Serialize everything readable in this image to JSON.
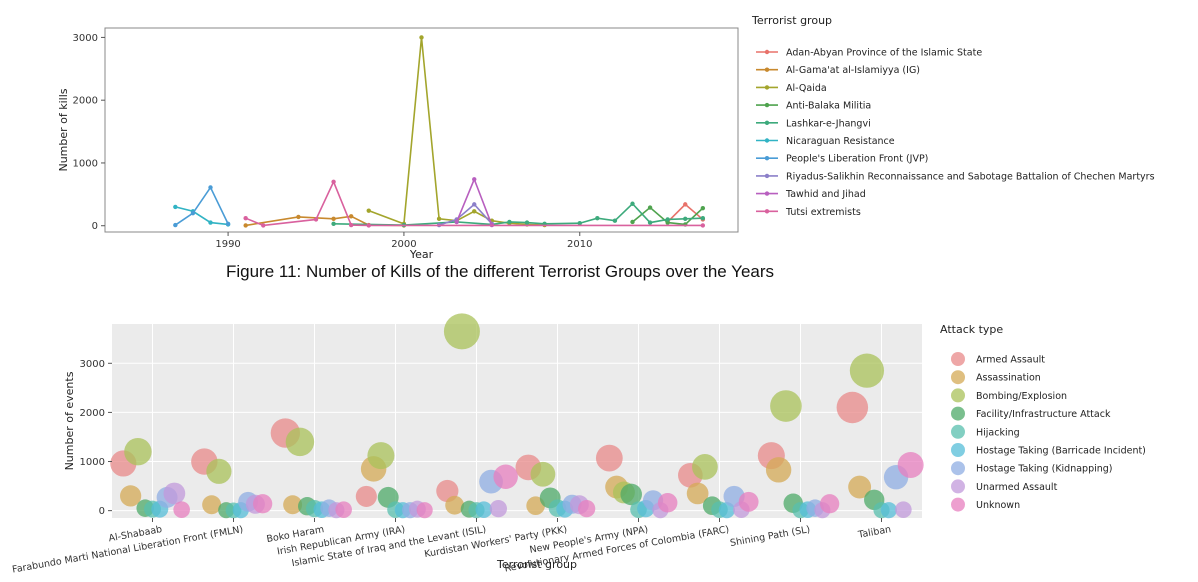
{
  "chart_data": [
    {
      "type": "line",
      "xlabel": "Year",
      "ylabel": "Number of kills",
      "xlim": [
        1983,
        2019
      ],
      "ylim": [
        -100,
        3150
      ],
      "x_ticks": [
        1990,
        2000,
        2010
      ],
      "y_ticks": [
        0,
        1000,
        2000,
        3000
      ],
      "legend_title": "Terrorist group",
      "legend_position": "right",
      "grid": false,
      "series": [
        {
          "name": "Adan-Abyan Province of the Islamic State",
          "color": "#E8726A",
          "points": [
            [
              2015,
              60
            ],
            [
              2016,
              340
            ],
            [
              2017,
              100
            ]
          ]
        },
        {
          "name": "Al-Gama'at al-Islamiyya (IG)",
          "color": "#C8892E",
          "points": [
            [
              1991,
              5
            ],
            [
              1994,
              140
            ],
            [
              1996,
              110
            ],
            [
              1997,
              150
            ],
            [
              1998,
              10
            ],
            [
              2000,
              5
            ]
          ]
        },
        {
          "name": "Al-Qaida",
          "color": "#A3A52C",
          "points": [
            [
              1998,
              240
            ],
            [
              2000,
              30
            ],
            [
              2001,
              3000
            ],
            [
              2002,
              110
            ],
            [
              2003,
              80
            ],
            [
              2004,
              230
            ],
            [
              2005,
              80
            ],
            [
              2006,
              40
            ],
            [
              2007,
              20
            ],
            [
              2008,
              10
            ]
          ]
        },
        {
          "name": "Anti-Balaka Militia",
          "color": "#4FA34E",
          "points": [
            [
              2013,
              60
            ],
            [
              2014,
              290
            ],
            [
              2015,
              50
            ],
            [
              2016,
              20
            ],
            [
              2017,
              280
            ]
          ]
        },
        {
          "name": "Lashkar-e-Jhangvi",
          "color": "#3DAA7C",
          "points": [
            [
              1996,
              30
            ],
            [
              2000,
              10
            ],
            [
              2003,
              60
            ],
            [
              2005,
              20
            ],
            [
              2006,
              60
            ],
            [
              2007,
              50
            ],
            [
              2008,
              30
            ],
            [
              2010,
              40
            ],
            [
              2011,
              120
            ],
            [
              2012,
              80
            ],
            [
              2013,
              350
            ],
            [
              2014,
              50
            ],
            [
              2015,
              100
            ],
            [
              2016,
              110
            ],
            [
              2017,
              120
            ]
          ]
        },
        {
          "name": "Nicaraguan Resistance",
          "color": "#31B3C4",
          "points": [
            [
              1987,
              300
            ],
            [
              1988,
              230
            ],
            [
              1989,
              50
            ],
            [
              1990,
              20
            ]
          ]
        },
        {
          "name": "People's Liberation Front (JVP)",
          "color": "#4A9CD6",
          "points": [
            [
              1987,
              10
            ],
            [
              1988,
              200
            ],
            [
              1989,
              610
            ],
            [
              1990,
              30
            ]
          ]
        },
        {
          "name": "Riyadus-Salikhin Reconnaissance and Sabotage Battalion of Chechen Martyrs",
          "color": "#8C80C9",
          "points": [
            [
              2002,
              10
            ],
            [
              2003,
              100
            ],
            [
              2004,
              340
            ],
            [
              2005,
              30
            ]
          ]
        },
        {
          "name": "Tawhid and Jihad",
          "color": "#B85FBF",
          "points": [
            [
              2003,
              60
            ],
            [
              2004,
              740
            ],
            [
              2005,
              10
            ]
          ]
        },
        {
          "name": "Tutsi extremists",
          "color": "#D9619E",
          "points": [
            [
              1991,
              120
            ],
            [
              1992,
              5
            ],
            [
              1995,
              100
            ],
            [
              1996,
              700
            ],
            [
              1997,
              10
            ],
            [
              1998,
              5
            ],
            [
              2017,
              5
            ]
          ]
        }
      ]
    },
    {
      "type": "scatter",
      "xlabel": "Terrorist group",
      "ylabel": "Number of events",
      "ylim": [
        -150,
        3800
      ],
      "y_ticks": [
        0,
        1000,
        2000,
        3000
      ],
      "legend_title": "Attack type",
      "legend_position": "right",
      "grid": true,
      "categories": [
        "Al-Shabaab",
        "Farabundo Marti National Liberation Front (FMLN)",
        "Boko Haram",
        "Irish Republican Army (IRA)",
        "Islamic State of Iraq and the Levant (ISIL)",
        "Kurdistan Workers' Party (PKK)",
        "New People's Army (NPA)",
        "Revolutionary Armed Forces of Colombia (FARC)",
        "Shining Path (SL)",
        "Taliban"
      ],
      "series": [
        {
          "name": "Armed Assault",
          "color": "#E88A8A",
          "values": [
            960,
            1000,
            1580,
            290,
            400,
            880,
            1070,
            720,
            1120,
            2100
          ]
        },
        {
          "name": "Assassination",
          "color": "#D4AA55",
          "values": [
            300,
            120,
            120,
            850,
            110,
            100,
            480,
            350,
            830,
            480
          ]
        },
        {
          "name": "Bombing/Explosion",
          "color": "#A9C15A",
          "values": [
            1200,
            800,
            1400,
            1120,
            3650,
            740,
            370,
            890,
            2130,
            2850
          ]
        },
        {
          "name": "Facility/Infrastructure Attack",
          "color": "#4EAA68",
          "values": [
            50,
            10,
            90,
            270,
            30,
            260,
            330,
            100,
            150,
            220
          ]
        },
        {
          "name": "Hijacking",
          "color": "#58BFAE",
          "values": [
            30,
            5,
            40,
            20,
            10,
            50,
            20,
            20,
            10,
            10
          ]
        },
        {
          "name": "Hostage Taking (Barricade Incident)",
          "color": "#55BDD8",
          "values": [
            30,
            10,
            20,
            10,
            20,
            30,
            40,
            10,
            20,
            10
          ]
        },
        {
          "name": "Hostage Taking (Kidnapping)",
          "color": "#8FADE3",
          "values": [
            270,
            180,
            50,
            10,
            590,
            130,
            210,
            290,
            50,
            680
          ]
        },
        {
          "name": "Unarmed Assault",
          "color": "#C29ADB",
          "values": [
            350,
            130,
            10,
            30,
            40,
            120,
            10,
            20,
            10,
            20
          ]
        },
        {
          "name": "Unknown",
          "color": "#E77FBF",
          "values": [
            20,
            140,
            20,
            10,
            690,
            40,
            160,
            180,
            140,
            930
          ]
        }
      ]
    }
  ],
  "caption": "Figure 11: Number of Kills of the different Terrorist Groups over the Years"
}
